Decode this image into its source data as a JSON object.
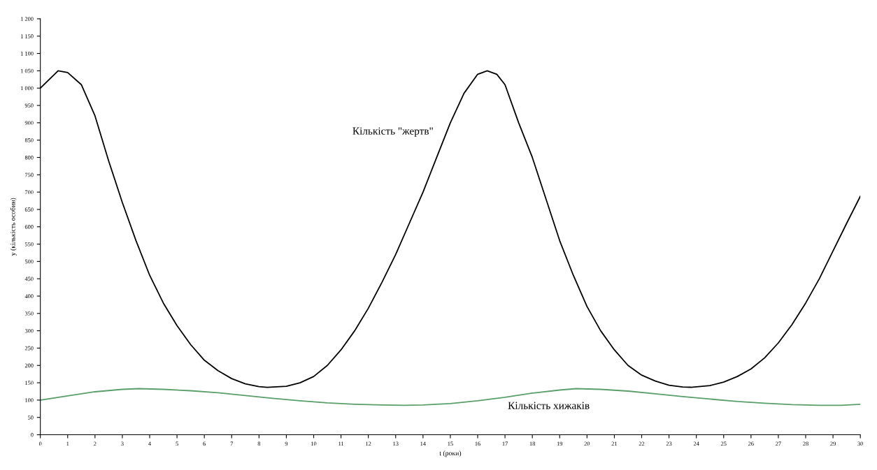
{
  "chart_data": {
    "type": "line",
    "xlabel": "t (роки)",
    "ylabel": "y (кількість особин)",
    "xlim": [
      0,
      30
    ],
    "xticks": [
      0,
      1,
      2,
      3,
      4,
      5,
      6,
      7,
      8,
      9,
      10,
      11,
      12,
      13,
      14,
      15,
      16,
      17,
      18,
      19,
      20,
      21,
      22,
      23,
      24,
      25,
      26,
      27,
      28,
      29,
      30
    ],
    "ylim": [
      0,
      1200
    ],
    "yticks": [
      0,
      50,
      100,
      150,
      200,
      250,
      300,
      350,
      400,
      450,
      500,
      550,
      600,
      650,
      700,
      750,
      800,
      850,
      900,
      950,
      {
        "value": 1000,
        "label": "1 000"
      },
      {
        "value": 1050,
        "label": "1 050"
      },
      {
        "value": 1100,
        "label": "1 100"
      },
      {
        "value": 1150,
        "label": "1 150"
      },
      {
        "value": 1200,
        "label": "1 200"
      }
    ],
    "grid": false,
    "legend": false,
    "marker": "none",
    "line_style": "solid",
    "series": [
      {
        "color": "#000000",
        "x": [
          0,
          0.65,
          1,
          1.5,
          2,
          2.5,
          3,
          3.5,
          4,
          4.5,
          5,
          5.5,
          6,
          6.5,
          7,
          7.5,
          8,
          8.3,
          9,
          9.5,
          10,
          10.5,
          11,
          11.5,
          12,
          12.5,
          13,
          13.5,
          14,
          14.5,
          15,
          15.5,
          16,
          16.35,
          16.7,
          17,
          17.5,
          18,
          18.5,
          19,
          19.5,
          20,
          20.5,
          21,
          21.5,
          22,
          22.5,
          23,
          23.5,
          23.8,
          24.5,
          25,
          25.5,
          26,
          26.5,
          27,
          27.5,
          28,
          28.5,
          29,
          29.5,
          30
        ],
        "values": [
          1000,
          1050,
          1045,
          1010,
          920,
          790,
          670,
          560,
          460,
          380,
          315,
          260,
          215,
          185,
          162,
          147,
          139,
          137,
          140,
          150,
          168,
          200,
          245,
          300,
          365,
          440,
          520,
          610,
          700,
          800,
          900,
          985,
          1040,
          1050,
          1040,
          1010,
          900,
          800,
          680,
          560,
          460,
          370,
          300,
          245,
          200,
          172,
          155,
          143,
          138,
          137,
          142,
          152,
          168,
          190,
          222,
          265,
          318,
          380,
          450,
          530,
          610,
          688
        ]
      },
      {
        "color": "#5a9e6a",
        "x": [
          0,
          1,
          2,
          3,
          3.6,
          4.5,
          5.5,
          6.5,
          7.5,
          8.5,
          9.5,
          10.5,
          11.5,
          12.5,
          13.3,
          14,
          15,
          16,
          17,
          18,
          19,
          19.6,
          20.5,
          21.5,
          22.5,
          23.5,
          24.5,
          25.5,
          26.5,
          27.5,
          28.5,
          29.3,
          30
        ],
        "values": [
          100,
          112,
          124,
          131,
          133,
          131,
          127,
          121,
          113,
          105,
          98,
          92,
          88,
          86,
          85,
          86,
          90,
          98,
          108,
          120,
          129,
          133,
          131,
          126,
          118,
          110,
          103,
          96,
          91,
          87,
          85,
          85,
          88
        ]
      }
    ],
    "annotations": [
      "Кількість \"жертв\"",
      "Кількість хижаків"
    ]
  }
}
